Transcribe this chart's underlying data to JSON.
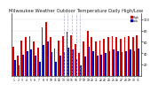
{
  "title": "Milwaukee Weather Outdoor Temperature Daily High/Low",
  "title_fontsize": 3.8,
  "bar_width": 0.38,
  "ylim": [
    0,
    110
  ],
  "ytick_values": [
    20,
    40,
    60,
    80,
    100
  ],
  "background_color": "#ffffff",
  "grid_color": "#cccccc",
  "high_color": "#dd0000",
  "low_color": "#0000cc",
  "dashed_line_color": "#aaaacc",
  "days": [
    1,
    2,
    3,
    4,
    5,
    6,
    7,
    8,
    9,
    10,
    11,
    12,
    13,
    14,
    15,
    16,
    17,
    18,
    19,
    20,
    21,
    22,
    23,
    24,
    25,
    26,
    27,
    28,
    29,
    30,
    31
  ],
  "highs": [
    52,
    35,
    62,
    68,
    70,
    60,
    50,
    85,
    95,
    68,
    48,
    62,
    70,
    78,
    72,
    56,
    40,
    60,
    80,
    68,
    60,
    62,
    65,
    68,
    70,
    68,
    66,
    68,
    70,
    68,
    72
  ],
  "lows": [
    28,
    18,
    38,
    44,
    46,
    36,
    25,
    55,
    60,
    42,
    24,
    36,
    42,
    50,
    46,
    30,
    18,
    34,
    52,
    44,
    36,
    38,
    40,
    44,
    46,
    44,
    42,
    44,
    46,
    44,
    48
  ],
  "legend_high": "High",
  "legend_low": "Low",
  "dashed_indices": [
    13,
    14,
    15,
    16,
    17
  ]
}
